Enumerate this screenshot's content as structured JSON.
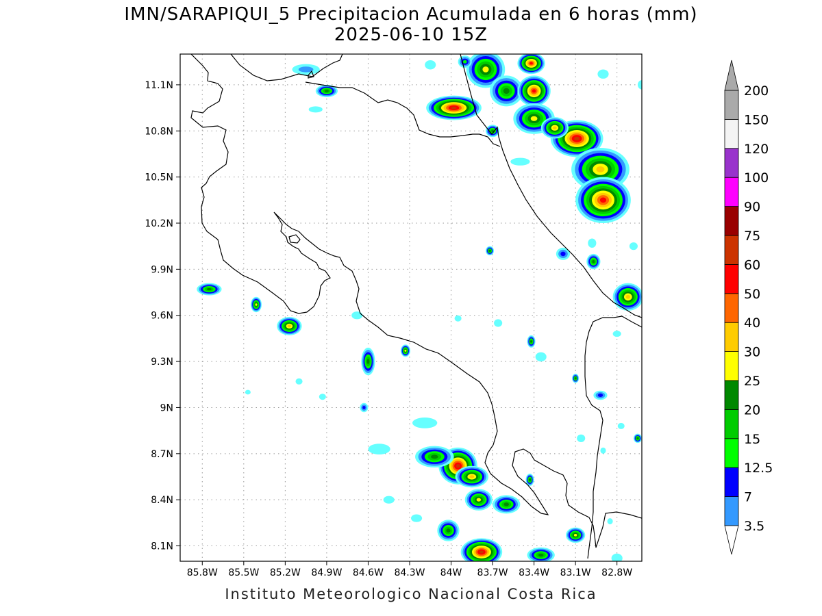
{
  "title_line1": "IMN/SARAPIQUI_5 Precipitacion Acumulada en 6 horas (mm)",
  "title_line2": "2025-06-10 15Z",
  "credit": "Instituto Meteorologico Nacional Costa Rica",
  "map": {
    "lon_range": [
      -85.96,
      -82.62
    ],
    "lat_range": [
      8.0,
      11.3
    ],
    "x_ticks": [
      {
        "lon": -85.8,
        "label": "85.8W"
      },
      {
        "lon": -85.5,
        "label": "85.5W"
      },
      {
        "lon": -85.2,
        "label": "85.2W"
      },
      {
        "lon": -84.9,
        "label": "84.9W"
      },
      {
        "lon": -84.6,
        "label": "84.6W"
      },
      {
        "lon": -84.3,
        "label": "84.3W"
      },
      {
        "lon": -84.0,
        "label": "84W"
      },
      {
        "lon": -83.7,
        "label": "83.7W"
      },
      {
        "lon": -83.4,
        "label": "83.4W"
      },
      {
        "lon": -83.1,
        "label": "83.1W"
      },
      {
        "lon": -82.8,
        "label": "82.8W"
      }
    ],
    "y_ticks": [
      {
        "lat": 11.1,
        "label": "11.1N"
      },
      {
        "lat": 10.8,
        "label": "10.8N"
      },
      {
        "lat": 10.5,
        "label": "10.5N"
      },
      {
        "lat": 10.2,
        "label": "10.2N"
      },
      {
        "lat": 9.9,
        "label": "9.9N"
      },
      {
        "lat": 9.6,
        "label": "9.6N"
      },
      {
        "lat": 9.3,
        "label": "9.3N"
      },
      {
        "lat": 9.0,
        "label": "9N"
      },
      {
        "lat": 8.7,
        "label": "8.7N"
      },
      {
        "lat": 8.4,
        "label": "8.4N"
      },
      {
        "lat": 8.1,
        "label": "8.1N"
      }
    ],
    "grid": true
  },
  "legend": {
    "levels": [
      {
        "label": "3.5",
        "color": "#66ffff"
      },
      {
        "label": "7",
        "color": "#3399ff"
      },
      {
        "label": "12.5",
        "color": "#0000ff"
      },
      {
        "label": "15",
        "color": "#00ff00"
      },
      {
        "label": "20",
        "color": "#00cc00"
      },
      {
        "label": "25",
        "color": "#008800"
      },
      {
        "label": "30",
        "color": "#ffff00"
      },
      {
        "label": "40",
        "color": "#ffcc00"
      },
      {
        "label": "50",
        "color": "#ff6600"
      },
      {
        "label": "60",
        "color": "#ff0000"
      },
      {
        "label": "75",
        "color": "#cc3300"
      },
      {
        "label": "90",
        "color": "#990000"
      },
      {
        "label": "100",
        "color": "#ff00ff"
      },
      {
        "label": "120",
        "color": "#9933cc"
      },
      {
        "label": "150",
        "color": "#f4f4f4"
      },
      {
        "label": "200",
        "color": "#aaaaaa"
      }
    ]
  },
  "precip_cells": [
    {
      "lon": -83.75,
      "lat": 11.2,
      "rx": 0.14,
      "ry": 0.12,
      "max": 30
    },
    {
      "lon": -83.42,
      "lat": 11.24,
      "rx": 0.1,
      "ry": 0.07,
      "max": 60
    },
    {
      "lon": -83.98,
      "lat": 10.95,
      "rx": 0.2,
      "ry": 0.08,
      "max": 75
    },
    {
      "lon": -83.6,
      "lat": 11.06,
      "rx": 0.12,
      "ry": 0.1,
      "max": 25
    },
    {
      "lon": -83.4,
      "lat": 11.06,
      "rx": 0.12,
      "ry": 0.1,
      "max": 60
    },
    {
      "lon": -83.4,
      "lat": 10.88,
      "rx": 0.15,
      "ry": 0.1,
      "max": 30
    },
    {
      "lon": -83.09,
      "lat": 10.75,
      "rx": 0.19,
      "ry": 0.12,
      "max": 75
    },
    {
      "lon": -83.25,
      "lat": 10.82,
      "rx": 0.1,
      "ry": 0.07,
      "max": 40
    },
    {
      "lon": -82.92,
      "lat": 10.55,
      "rx": 0.21,
      "ry": 0.14,
      "max": 40
    },
    {
      "lon": -82.9,
      "lat": 10.35,
      "rx": 0.2,
      "ry": 0.15,
      "max": 60
    },
    {
      "lon": -82.72,
      "lat": 9.72,
      "rx": 0.11,
      "ry": 0.09,
      "max": 40
    },
    {
      "lon": -84.9,
      "lat": 11.06,
      "rx": 0.08,
      "ry": 0.04,
      "max": 25
    },
    {
      "lon": -85.05,
      "lat": 11.2,
      "rx": 0.1,
      "ry": 0.035,
      "max": 7
    },
    {
      "lon": -85.75,
      "lat": 9.77,
      "rx": 0.09,
      "ry": 0.04,
      "max": 25
    },
    {
      "lon": -85.41,
      "lat": 9.67,
      "rx": 0.04,
      "ry": 0.05,
      "max": 30
    },
    {
      "lon": -85.17,
      "lat": 9.53,
      "rx": 0.09,
      "ry": 0.06,
      "max": 40
    },
    {
      "lon": -84.6,
      "lat": 9.3,
      "rx": 0.05,
      "ry": 0.09,
      "max": 25
    },
    {
      "lon": -84.33,
      "lat": 9.37,
      "rx": 0.035,
      "ry": 0.04,
      "max": 30
    },
    {
      "lon": -83.95,
      "lat": 8.62,
      "rx": 0.14,
      "ry": 0.12,
      "max": 75
    },
    {
      "lon": -84.12,
      "lat": 8.68,
      "rx": 0.14,
      "ry": 0.07,
      "max": 25
    },
    {
      "lon": -83.85,
      "lat": 8.55,
      "rx": 0.12,
      "ry": 0.07,
      "max": 40
    },
    {
      "lon": -83.8,
      "lat": 8.4,
      "rx": 0.1,
      "ry": 0.07,
      "max": 30
    },
    {
      "lon": -83.6,
      "lat": 8.37,
      "rx": 0.1,
      "ry": 0.06,
      "max": 25
    },
    {
      "lon": -84.02,
      "lat": 8.2,
      "rx": 0.08,
      "ry": 0.07,
      "max": 25
    },
    {
      "lon": -83.78,
      "lat": 8.06,
      "rx": 0.15,
      "ry": 0.09,
      "max": 75
    },
    {
      "lon": -83.1,
      "lat": 8.17,
      "rx": 0.07,
      "ry": 0.05,
      "max": 30
    },
    {
      "lon": -83.35,
      "lat": 8.04,
      "rx": 0.1,
      "ry": 0.05,
      "max": 25
    },
    {
      "lon": -83.42,
      "lat": 9.43,
      "rx": 0.03,
      "ry": 0.04,
      "max": 25
    },
    {
      "lon": -82.97,
      "lat": 9.95,
      "rx": 0.05,
      "ry": 0.05,
      "max": 25
    },
    {
      "lon": -83.72,
      "lat": 10.02,
      "rx": 0.03,
      "ry": 0.03,
      "max": 25
    },
    {
      "lon": -83.19,
      "lat": 10.0,
      "rx": 0.05,
      "ry": 0.04,
      "max": 12.5
    },
    {
      "lon": -83.1,
      "lat": 9.19,
      "rx": 0.025,
      "ry": 0.03,
      "max": 25
    },
    {
      "lon": -84.63,
      "lat": 9.0,
      "rx": 0.03,
      "ry": 0.03,
      "max": 12.5
    },
    {
      "lon": -83.43,
      "lat": 8.53,
      "rx": 0.03,
      "ry": 0.04,
      "max": 25
    },
    {
      "lon": -82.92,
      "lat": 9.08,
      "rx": 0.05,
      "ry": 0.03,
      "max": 12.5
    },
    {
      "lon": -82.65,
      "lat": 8.8,
      "rx": 0.03,
      "ry": 0.03,
      "max": 25
    },
    {
      "lon": -83.9,
      "lat": 11.25,
      "rx": 0.05,
      "ry": 0.04,
      "max": 15
    },
    {
      "lon": -83.7,
      "lat": 10.8,
      "rx": 0.05,
      "ry": 0.04,
      "max": 25
    }
  ],
  "light_blobs": [
    {
      "lon": -84.19,
      "lat": 8.9,
      "rx": 0.09,
      "ry": 0.035
    },
    {
      "lon": -84.52,
      "lat": 8.73,
      "rx": 0.08,
      "ry": 0.035
    },
    {
      "lon": -84.45,
      "lat": 8.4,
      "rx": 0.04,
      "ry": 0.025
    },
    {
      "lon": -84.25,
      "lat": 8.28,
      "rx": 0.04,
      "ry": 0.025
    },
    {
      "lon": -84.15,
      "lat": 11.23,
      "rx": 0.04,
      "ry": 0.03
    },
    {
      "lon": -84.68,
      "lat": 9.6,
      "rx": 0.04,
      "ry": 0.025
    },
    {
      "lon": -83.95,
      "lat": 9.58,
      "rx": 0.025,
      "ry": 0.02
    },
    {
      "lon": -83.66,
      "lat": 9.55,
      "rx": 0.03,
      "ry": 0.025
    },
    {
      "lon": -83.35,
      "lat": 9.33,
      "rx": 0.04,
      "ry": 0.03
    },
    {
      "lon": -85.1,
      "lat": 9.17,
      "rx": 0.025,
      "ry": 0.02
    },
    {
      "lon": -85.47,
      "lat": 9.1,
      "rx": 0.02,
      "ry": 0.015
    },
    {
      "lon": -84.93,
      "lat": 9.07,
      "rx": 0.025,
      "ry": 0.02
    },
    {
      "lon": -83.06,
      "lat": 8.8,
      "rx": 0.03,
      "ry": 0.025
    },
    {
      "lon": -82.9,
      "lat": 8.72,
      "rx": 0.02,
      "ry": 0.02
    },
    {
      "lon": -82.77,
      "lat": 8.88,
      "rx": 0.025,
      "ry": 0.02
    },
    {
      "lon": -82.8,
      "lat": 9.48,
      "rx": 0.03,
      "ry": 0.02
    },
    {
      "lon": -82.68,
      "lat": 10.05,
      "rx": 0.03,
      "ry": 0.025
    },
    {
      "lon": -82.98,
      "lat": 10.07,
      "rx": 0.03,
      "ry": 0.03
    },
    {
      "lon": -84.98,
      "lat": 10.94,
      "rx": 0.05,
      "ry": 0.02
    },
    {
      "lon": -82.9,
      "lat": 11.17,
      "rx": 0.04,
      "ry": 0.03
    },
    {
      "lon": -82.62,
      "lat": 11.1,
      "rx": 0.03,
      "ry": 0.03
    },
    {
      "lon": -83.5,
      "lat": 10.6,
      "rx": 0.07,
      "ry": 0.025
    },
    {
      "lon": -82.8,
      "lat": 8.02,
      "rx": 0.04,
      "ry": 0.03
    },
    {
      "lon": -82.85,
      "lat": 8.26,
      "rx": 0.02,
      "ry": 0.02
    }
  ]
}
